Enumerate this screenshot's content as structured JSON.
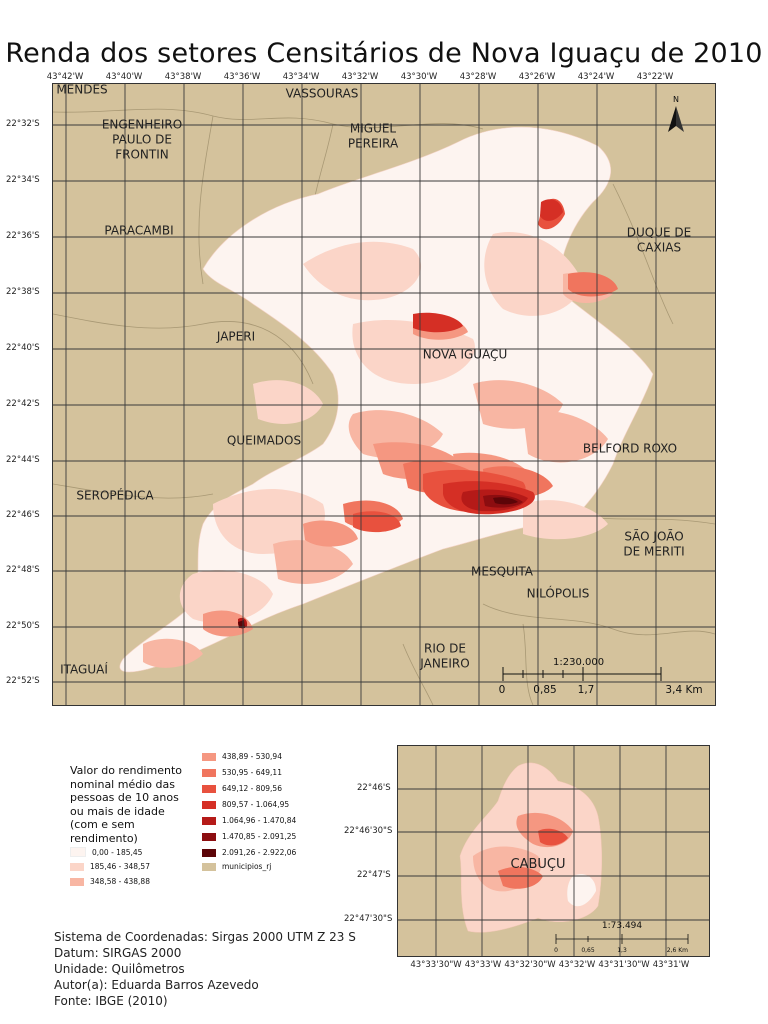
{
  "title": "Renda dos setores Censitários de Nova Iguaçu de 2010",
  "colors": {
    "background_municipios": "#d4c29c",
    "class0": "#fdf4f0",
    "class1": "#fbd5c8",
    "class2": "#f8b6a3",
    "class3": "#f59781",
    "class4": "#f0755e",
    "class5": "#e8513e",
    "class6": "#d52f25",
    "class7": "#b51a18",
    "class8": "#8c0d10",
    "class9": "#5c0508"
  },
  "map": {
    "lon_labels": [
      "43°42'W",
      "43°40'W",
      "43°38'W",
      "43°36'W",
      "43°34'W",
      "43°32'W",
      "43°30'W",
      "43°28'W",
      "43°26'W",
      "43°24'W",
      "43°22'W"
    ],
    "lat_labels": [
      "22°32'S",
      "22°34'S",
      "22°36'S",
      "22°38'S",
      "22°40'S",
      "22°42'S",
      "22°44'S",
      "22°46'S",
      "22°48'S",
      "22°50'S",
      "22°52'S"
    ],
    "north_label": "N",
    "places": {
      "mendes": "MENDES",
      "vassouras": "VASSOURAS",
      "engenheiro": "ENGENHEIRO",
      "paulo_de": "PAULO DE",
      "frontin": "FRONTIN",
      "miguel": "MIGUEL",
      "pereira": "PEREIRA",
      "paracambi": "PARACAMBI",
      "duque_de": "DUQUE DE",
      "caxias": "CAXIAS",
      "japeri": "JAPERI",
      "nova_iguacu": "NOVA IGUAÇU",
      "queimados": "QUEIMADOS",
      "belford_roxo": "BELFORD ROXO",
      "seropedica": "SEROPÉDICA",
      "sao_joao": "SÃO JOÃO",
      "de_meriti": "DE MERITI",
      "mesquita": "MESQUITA",
      "nilopolis": "NILÓPOLIS",
      "rio_de": "RIO DE",
      "janeiro": "JANEIRO",
      "itaguai": "ITAGUAÍ"
    },
    "scale": {
      "ratio": "1:230.000",
      "labels": [
        "0",
        "0,85",
        "1,7",
        "3,4 Km"
      ]
    }
  },
  "legend": {
    "title_lines": [
      "Valor do rendimento",
      "nominal médio das",
      "pessoas de 10 anos",
      "ou mais de idade",
      "(com e sem",
      "rendimento)"
    ],
    "classes": [
      "0,00 - 185,45",
      "185,46 - 348,57",
      "348,58 - 438,88",
      "438,89 - 530,94",
      "530,95 - 649,11",
      "649,12 - 809,56",
      "809,57 - 1.064,95",
      "1.064,96 - 1.470,84",
      "1.470,85 - 2.091,25",
      "2.091,26 - 2.922,06"
    ],
    "municipios_label": "municipios_rj"
  },
  "meta": {
    "line1": "Sistema de Coordenadas: Sirgas 2000 UTM Z 23 S",
    "line2": "Datum: SIRGAS 2000",
    "line3": "Unidade: Quilômetros",
    "line4": "Autor(a): Eduarda Barros Azevedo",
    "line5": "Fonte: IBGE (2010)"
  },
  "inset": {
    "place": "CABUÇU",
    "lat_labels": [
      "22°46'S",
      "22°46'30\"S",
      "22°47'S",
      "22°47'30\"S"
    ],
    "lon_labels": [
      "43°33'30\"W",
      "43°33'W",
      "43°32'30\"W",
      "43°32'W",
      "43°31'30\"W",
      "43°31'W"
    ],
    "scale": {
      "ratio": "1:73.494",
      "labels": [
        "0",
        "0,65",
        "1,3",
        "2,6 Km"
      ]
    }
  }
}
